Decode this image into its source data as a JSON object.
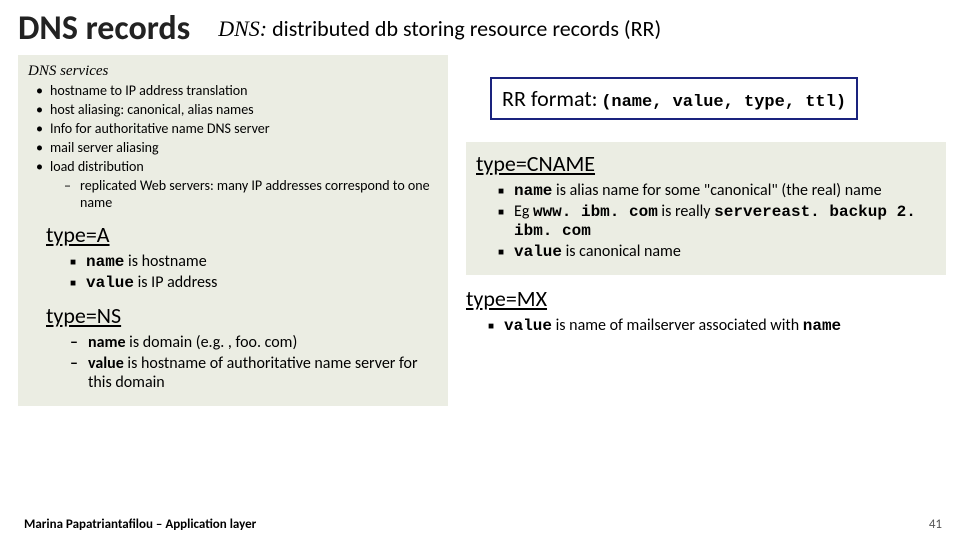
{
  "title": {
    "main": "DNS records",
    "sub_italic": "DNS:",
    "sub_rest": " distributed db storing resource records (RR)"
  },
  "left": {
    "services_head": "DNS services",
    "services": [
      "hostname to IP address translation",
      "host aliasing: canonical, alias names",
      "Info for authoritative name DNS server",
      "mail server aliasing",
      "load distribution"
    ],
    "services_sub": "replicated Web servers: many IP addresses correspond to one name",
    "typeA": {
      "head": "type=A",
      "l1_mono": "name",
      "l1_rest": " is hostname",
      "l2_mono": "value",
      "l2_rest": " is IP address"
    },
    "typeNS": {
      "head": "type=NS",
      "l1_mono": "name",
      "l1_rest": " is domain (e.g. , foo. com)",
      "l2_mono": "value",
      "l2_rest": " is hostname of authoritative name server for this domain"
    }
  },
  "right": {
    "rr_label": "RR format:",
    "rr_tuple": "(name, value, type, ttl)",
    "typeCNAME": {
      "head": "type=CNAME",
      "l1_mono": "name",
      "l1_rest": " is alias name for some \"canonical\" (the real) name",
      "l2_pre": "Eg ",
      "l2_mono1": "www. ibm. com",
      "l2_mid": " is really ",
      "l2_mono2": "servereast. backup 2. ibm. com",
      "l3_mono": "value",
      "l3_rest": " is canonical name"
    },
    "typeMX": {
      "head": "type=MX",
      "l1_mono": "value",
      "l1_rest": " is name of mailserver associated with ",
      "l1_mono2": "name"
    }
  },
  "footer": "Marina Papatriantafilou –  Application layer",
  "pagenum": "41",
  "colors": {
    "panel_bg": "#ebede3",
    "rr_border": "#1a237e"
  }
}
